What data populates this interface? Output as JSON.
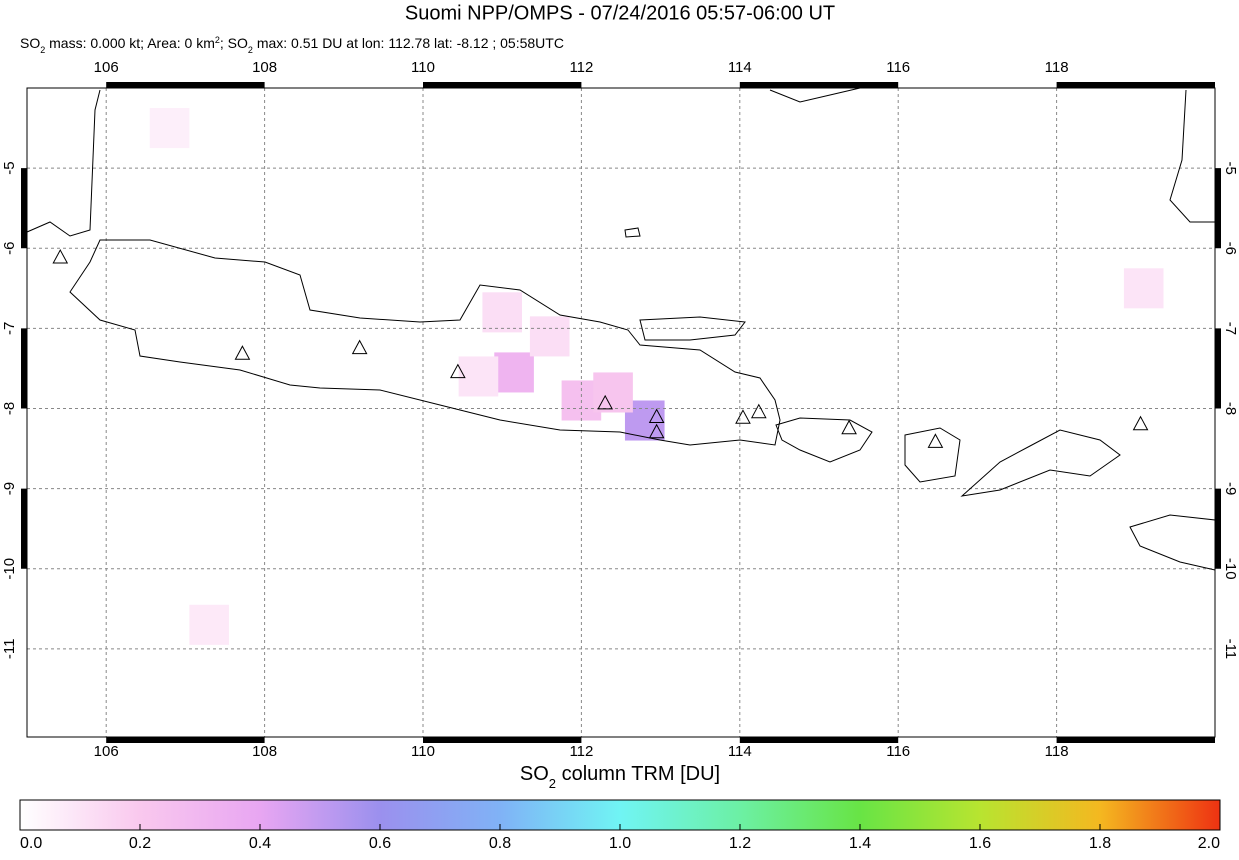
{
  "chart_data": {
    "type": "map",
    "title": "Suomi NPP/OMPS - 07/24/2016 05:57-06:00 UT",
    "subtitle": [
      "SO",
      "2",
      " mass: 0.000 kt; Area: 0 km",
      "2",
      "; SO",
      "2",
      " max: 0.51 DU at lon: 112.78 lat: -8.12 ; 05:58UTC"
    ],
    "xlim": [
      105,
      120
    ],
    "ylim": [
      -12.1,
      -4
    ],
    "xticks": [
      106,
      108,
      110,
      112,
      114,
      116,
      118
    ],
    "yticks": [
      -5,
      -6,
      -7,
      -8,
      -9,
      -10,
      -11
    ],
    "grid": true,
    "volcanoes": {
      "lon": [
        105.42,
        107.72,
        109.2,
        110.44,
        112.3,
        112.95,
        112.95,
        114.04,
        114.24,
        115.38,
        116.47,
        119.06
      ],
      "lat": [
        -6.11,
        -7.31,
        -7.24,
        -7.54,
        -7.93,
        -8.1,
        -8.29,
        -8.11,
        -8.04,
        -8.24,
        -8.41,
        -8.19
      ]
    },
    "so2_pixels": {
      "lon": [
        112.8,
        111.15,
        112.0,
        112.4,
        111.6,
        110.7,
        107.3,
        119.1,
        111.0,
        106.8
      ],
      "lat": [
        -8.15,
        -7.55,
        -7.9,
        -7.8,
        -7.1,
        -7.6,
        -10.7,
        -6.5,
        -6.8,
        -4.5
      ],
      "values": [
        0.51,
        0.32,
        0.25,
        0.22,
        0.12,
        0.1,
        0.08,
        0.1,
        0.12,
        0.06
      ]
    },
    "colorbar": {
      "label": [
        "SO",
        "2",
        " column TRM [DU]"
      ],
      "lim": [
        0,
        2
      ],
      "ticks": [
        {
          "value": 0,
          "label": "0.0"
        },
        {
          "value": 0.2,
          "label": "0.2"
        },
        {
          "value": 0.4,
          "label": "0.4"
        },
        {
          "value": 0.6,
          "label": "0.6"
        },
        {
          "value": 0.8,
          "label": "0.8"
        },
        {
          "value": 1,
          "label": "1.0"
        },
        {
          "value": 1.2,
          "label": "1.2"
        },
        {
          "value": 1.4,
          "label": "1.4"
        },
        {
          "value": 1.6,
          "label": "1.6"
        },
        {
          "value": 1.8,
          "label": "1.8"
        },
        {
          "value": 2,
          "label": "2.0"
        }
      ],
      "colormap": [
        "#ffffff",
        "#f9c8ee",
        "#e8a6f2",
        "#9b90ee",
        "#80b2f6",
        "#70f4f4",
        "#6cf0a4",
        "#68e445",
        "#b8e430",
        "#f4b820",
        "#ee3212"
      ]
    }
  }
}
